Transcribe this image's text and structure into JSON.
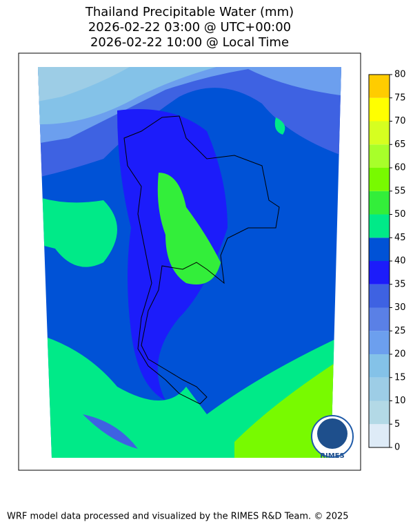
{
  "map": {
    "title_lines": [
      "Thailand Precipitable Water (mm)",
      "2026-02-22 03:00 @ UTC+00:00",
      "2026-02-22 10:00 @ Local Time"
    ],
    "colorbar": {
      "levels": [
        0,
        5,
        10,
        15,
        20,
        25,
        30,
        35,
        40,
        45,
        50,
        55,
        60,
        65,
        70,
        75,
        80
      ],
      "colors": [
        "#deebf7",
        "#b3d9e6",
        "#9dcde6",
        "#84c2e8",
        "#6c9fee",
        "#5a80e6",
        "#3e62e2",
        "#1c1cfa",
        "#0052d6",
        "#00ea88",
        "#33ee3a",
        "#78fa00",
        "#a8ff2a",
        "#d6ff20",
        "#ffff00",
        "#ffcc00"
      ]
    },
    "logo_text": "RIMES"
  },
  "footer": "WRF model data processed and visualized by the RIMES R&D Team. © 2025"
}
